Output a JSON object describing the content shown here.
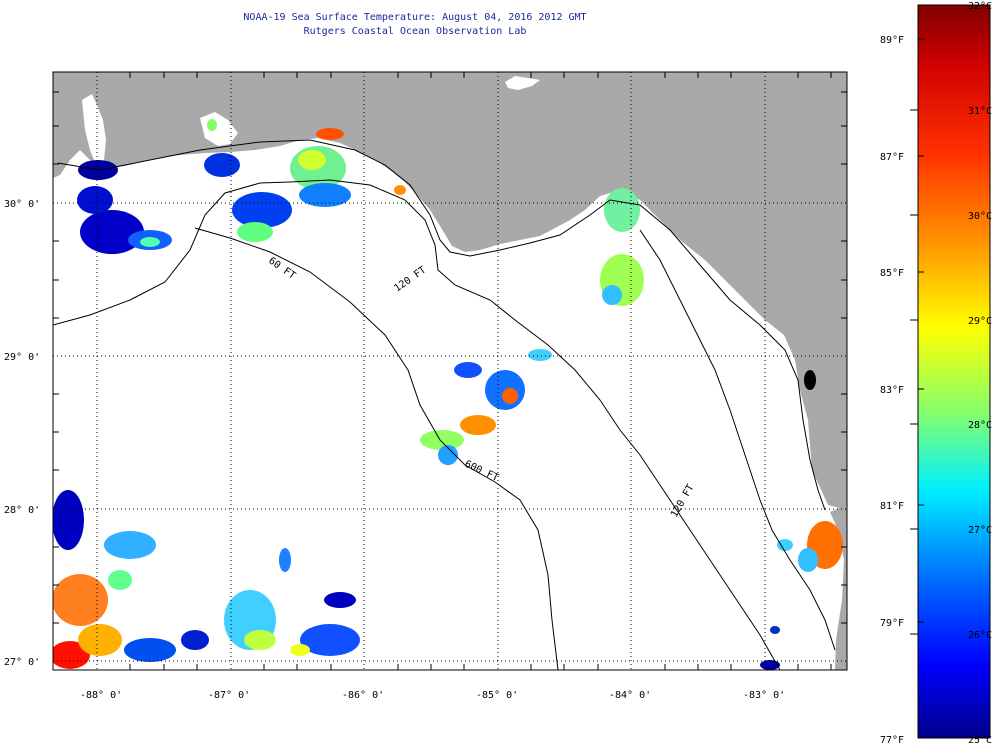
{
  "header": {
    "title": "NOAA-19 Sea Surface Temperature:  August 04, 2016 2012 GMT",
    "subtitle": "Rutgers Coastal Ocean Observation Lab"
  },
  "map": {
    "lat_labels": [
      "30° 0'",
      "29° 0'",
      "28° 0'",
      "27° 0'"
    ],
    "lon_labels": [
      "-88° 0'",
      "-87° 0'",
      "-86° 0'",
      "-85° 0'",
      "-84° 0'",
      "-83° 0'"
    ],
    "contour_labels": [
      "120 FT",
      "60 FT",
      "600 FT",
      "120 FT"
    ],
    "colors": {
      "land": "#a9a9a9",
      "water": "#ffffff",
      "frame": "#000000"
    }
  },
  "colorbar": {
    "celsius_labels": [
      "32°C",
      "31°C",
      "30°C",
      "29°C",
      "28°C",
      "27°C",
      "26°C",
      "25°C"
    ],
    "fahrenheit_labels": [
      "89°F",
      "87°F",
      "85°F",
      "83°F",
      "81°F",
      "79°F",
      "77°F"
    ],
    "colors": [
      "#7f0000",
      "#ff0000",
      "#ff8000",
      "#ffff00",
      "#80ff80",
      "#00ffff",
      "#0080ff",
      "#0000ff",
      "#00008f"
    ]
  }
}
